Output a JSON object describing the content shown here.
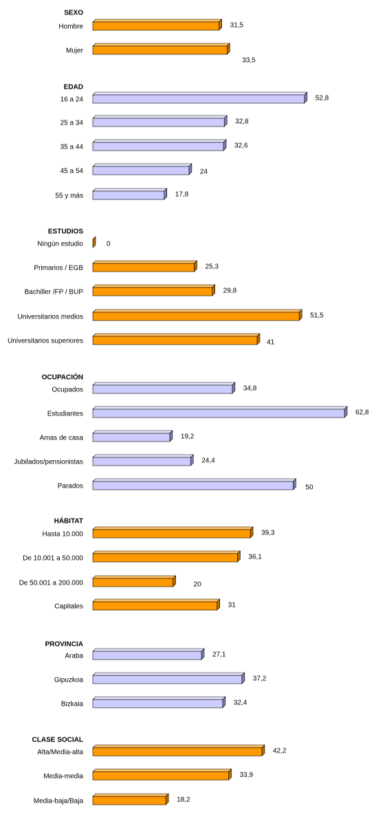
{
  "chart_data": {
    "type": "bar",
    "orientation": "horizontal",
    "style": "3d",
    "grid": false,
    "legend": "none",
    "colors": {
      "orange": "#FF9900",
      "orange_side": "#B86E00",
      "orange_top": "#FFC266",
      "lavender": "#CCCCFF",
      "lavender_side": "#8080B3",
      "lavender_top": "#E6E6FF"
    },
    "xlim": [
      0,
      62.8
    ],
    "groups": [
      {
        "title": "SEXO",
        "color": "orange",
        "categories": [
          "Hombre",
          "Mujer"
        ],
        "values": [
          31.5,
          33.5
        ],
        "value_labels": [
          "31,5",
          "33,5"
        ]
      },
      {
        "title": "EDAD",
        "color": "lavender",
        "categories": [
          "16 a 24",
          "25 a 34",
          "35 a 44",
          "45 a 54",
          "55 y más"
        ],
        "values": [
          52.8,
          32.8,
          32.6,
          24,
          17.8
        ],
        "value_labels": [
          "52,8",
          "32,8",
          "32,6",
          "24",
          "17,8"
        ]
      },
      {
        "title": "ESTUDIOS",
        "color": "orange",
        "categories": [
          "Ningún estudio",
          "Primarios / EGB",
          "Bachiller /FP / BUP",
          "Universitarios medios",
          "Universitarios superiores"
        ],
        "values": [
          0,
          25.3,
          29.8,
          51.5,
          41
        ],
        "value_labels": [
          "0",
          "25,3",
          "29,8",
          "51,5",
          "41"
        ]
      },
      {
        "title": "OCUPACIÓN",
        "color": "lavender",
        "categories": [
          "Ocupados",
          "Estudiantes",
          "Amas de casa",
          "Jubilados/pensionistas",
          "Parados"
        ],
        "values": [
          34.8,
          62.8,
          19.2,
          24.4,
          50
        ],
        "value_labels": [
          "34,8",
          "62,8",
          "19,2",
          "24,4",
          "50"
        ]
      },
      {
        "title": "HÁBITAT",
        "color": "orange",
        "categories": [
          "Hasta 10.000",
          "De 10.001 a 50.000",
          "De 50.001 a 200.000",
          "Capitales"
        ],
        "values": [
          39.3,
          36.1,
          20,
          31
        ],
        "value_labels": [
          "39,3",
          "36,1",
          "20",
          "31"
        ]
      },
      {
        "title": "PROVINCIA",
        "color": "lavender",
        "categories": [
          "Araba",
          "Gipuzkoa",
          "Bizkaia"
        ],
        "values": [
          27.1,
          37.2,
          32.4
        ],
        "value_labels": [
          "27,1",
          "37,2",
          "32,4"
        ]
      },
      {
        "title": "CLASE SOCIAL",
        "color": "orange",
        "categories": [
          "Alta/Media-alta",
          "Media-media",
          "Media-baja/Baja"
        ],
        "values": [
          42.2,
          33.9,
          18.2
        ],
        "value_labels": [
          "42,2",
          "33,9",
          "18,2"
        ]
      }
    ]
  }
}
